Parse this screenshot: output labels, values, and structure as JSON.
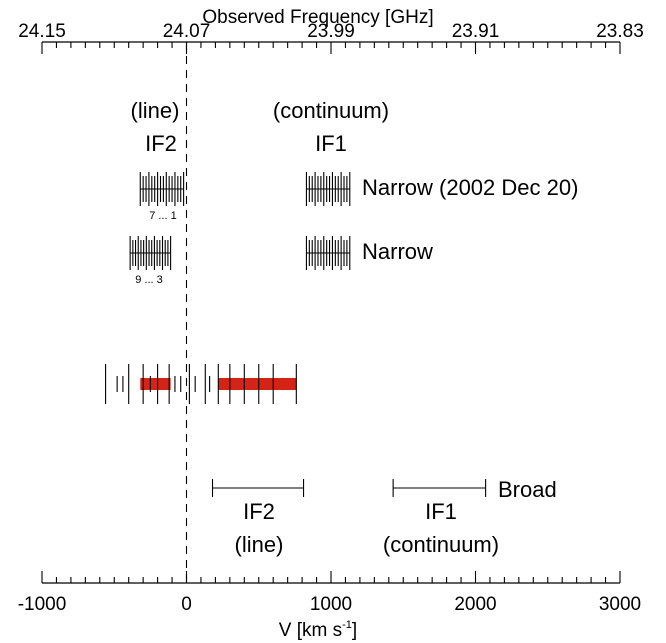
{
  "chart_data": {
    "type": "scatter",
    "title": "",
    "xlabel": "V [km s",
    "xlabel_sup": "-1",
    "xlabel_end": "]",
    "top_axis_label": "Observed Frequency [GHz]",
    "xlim": [
      -1000,
      3000
    ],
    "bottom_ticks": [
      {
        "value": -1000,
        "label": "-1000"
      },
      {
        "value": 0,
        "label": "0"
      },
      {
        "value": 1000,
        "label": "1000"
      },
      {
        "value": 2000,
        "label": "2000"
      },
      {
        "value": 3000,
        "label": "3000"
      }
    ],
    "top_ticks": [
      {
        "value": -1000,
        "label": "24.15"
      },
      {
        "value": 0,
        "label": "24.07"
      },
      {
        "value": 1000,
        "label": "23.99"
      },
      {
        "value": 2000,
        "label": "23.91"
      },
      {
        "value": 3000,
        "label": "23.83"
      }
    ],
    "zero_line": 0,
    "headers": {
      "line_tag": "(line)",
      "if2": "IF2",
      "cont_tag": "(continuum)",
      "if1": "IF1"
    },
    "narrow_rows": [
      {
        "label": "Narrow (2002 Dec 20)",
        "if2": {
          "start": -320,
          "end": -20,
          "lines": 16,
          "index_label": "7 ... 1"
        },
        "if1": {
          "start": 830,
          "end": 1130,
          "lines": 16
        }
      },
      {
        "label": "Narrow",
        "if2": {
          "start": -390,
          "end": -110,
          "lines": 16,
          "index_label": "9 ... 3"
        },
        "if1": {
          "start": 830,
          "end": 1130,
          "lines": 16
        }
      }
    ],
    "channel_markers": {
      "tall": [
        -560,
        -400,
        -300,
        -200,
        -120,
        20,
        130,
        220,
        300,
        400,
        500,
        600,
        760
      ],
      "short": [
        -480,
        -440,
        -250,
        -80,
        -40,
        60,
        160
      ],
      "red_segments": [
        [
          -320,
          -110
        ],
        [
          220,
          760
        ]
      ],
      "red_color": "#d42418"
    },
    "broad": {
      "label": "Broad",
      "if2": {
        "start": 180,
        "end": 810,
        "text_lines": [
          "IF2",
          "(line)"
        ]
      },
      "if1": {
        "start": 1430,
        "end": 2070,
        "text_lines": [
          "IF1",
          "(continuum)"
        ]
      }
    }
  }
}
